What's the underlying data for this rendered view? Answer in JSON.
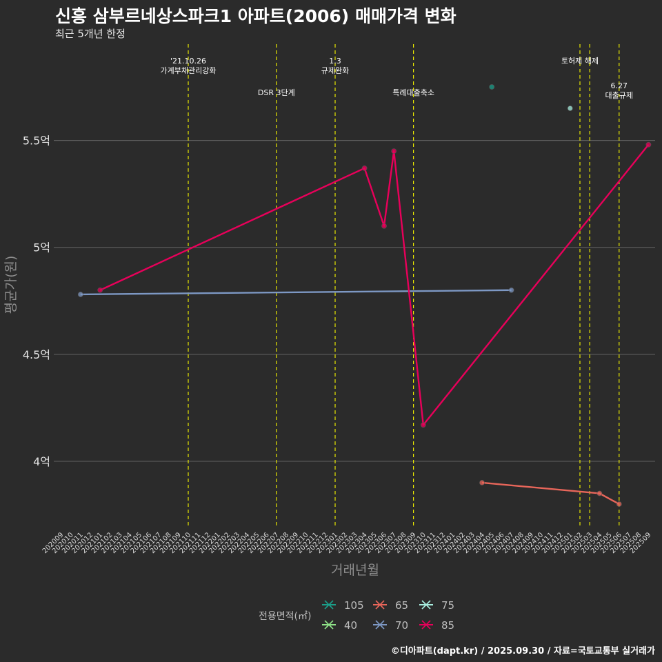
{
  "header": {
    "title": "신흥 삼부르네상스파크1 아파트(2006) 매매가격 변화",
    "subtitle": "최근 5개년 한정"
  },
  "footer": {
    "caption": "©디아파트(dapt.kr) / 2025.09.30 / 자료=국토교통부 실거래가"
  },
  "chart_data": {
    "type": "line",
    "title": "신흥 삼부르네상스파크1 아파트(2006) 매매가격 변화",
    "subtitle": "최근 5개년 한정",
    "xlabel": "거래년월",
    "ylabel": "평균가(원)",
    "ylim": [
      3.7,
      5.95
    ],
    "yticks": [
      {
        "value": 4.0,
        "label": "4억"
      },
      {
        "value": 4.5,
        "label": "4.5억"
      },
      {
        "value": 5.0,
        "label": "5억"
      },
      {
        "value": 5.5,
        "label": "5.5억"
      }
    ],
    "x_categories": [
      "202009",
      "202010",
      "202011",
      "202012",
      "202101",
      "202102",
      "202103",
      "202104",
      "202105",
      "202106",
      "202107",
      "202108",
      "202109",
      "202110",
      "202111",
      "202112",
      "202201",
      "202202",
      "202203",
      "202204",
      "202205",
      "202206",
      "202207",
      "202208",
      "202209",
      "202210",
      "202211",
      "202212",
      "202301",
      "202302",
      "202303",
      "202304",
      "202305",
      "202306",
      "202307",
      "202308",
      "202309",
      "202310",
      "202311",
      "202312",
      "202401",
      "202402",
      "202403",
      "202404",
      "202405",
      "202406",
      "202407",
      "202408",
      "202409",
      "202410",
      "202411",
      "202412",
      "202501",
      "202502",
      "202503",
      "202504",
      "202505",
      "202506",
      "202507",
      "202508",
      "202509"
    ],
    "grid": true,
    "legend_title": "전용면적(㎡)",
    "legend_position": "bottom",
    "series": [
      {
        "name": "105",
        "color": "#1b9e8a",
        "points": [
          {
            "x": "202405",
            "y": 5.75
          }
        ]
      },
      {
        "name": "40",
        "color": "#8fe388",
        "points": []
      },
      {
        "name": "65",
        "color": "#e8665a",
        "points": [
          {
            "x": "202404",
            "y": 3.9
          },
          {
            "x": "202504",
            "y": 3.85
          },
          {
            "x": "202506",
            "y": 3.8
          }
        ]
      },
      {
        "name": "70",
        "color": "#7d98c4",
        "points": [
          {
            "x": "202011",
            "y": 4.78
          },
          {
            "x": "202407",
            "y": 4.8
          }
        ]
      },
      {
        "name": "75",
        "color": "#a8efe0",
        "points": [
          {
            "x": "202501",
            "y": 5.65
          }
        ]
      },
      {
        "name": "85",
        "color": "#e8005a",
        "points": [
          {
            "x": "202101",
            "y": 4.8
          },
          {
            "x": "202304",
            "y": 5.37
          },
          {
            "x": "202306",
            "y": 5.1
          },
          {
            "x": "202307",
            "y": 5.45
          },
          {
            "x": "202310",
            "y": 4.17
          },
          {
            "x": "202509",
            "y": 5.48
          }
        ]
      }
    ],
    "events": [
      {
        "x": "202110",
        "lines": [
          "'21.10.26",
          "가계부채관리강화"
        ],
        "tier": 1
      },
      {
        "x": "202207",
        "lines": [
          "DSR 3단계"
        ],
        "tier": 2
      },
      {
        "x": "202301",
        "lines": [
          "1.3",
          "규제완화"
        ],
        "tier": 1
      },
      {
        "x": "202309",
        "lines": [
          "특례대출축소"
        ],
        "tier": 2
      },
      {
        "x": "202502",
        "lines": [
          "토허제 해제"
        ],
        "tier": 1
      },
      {
        "x": "202503",
        "lines": [],
        "tier": 1
      },
      {
        "x": "202506",
        "lines": [
          "6.27",
          "대출규제"
        ],
        "tier": 3
      }
    ]
  }
}
